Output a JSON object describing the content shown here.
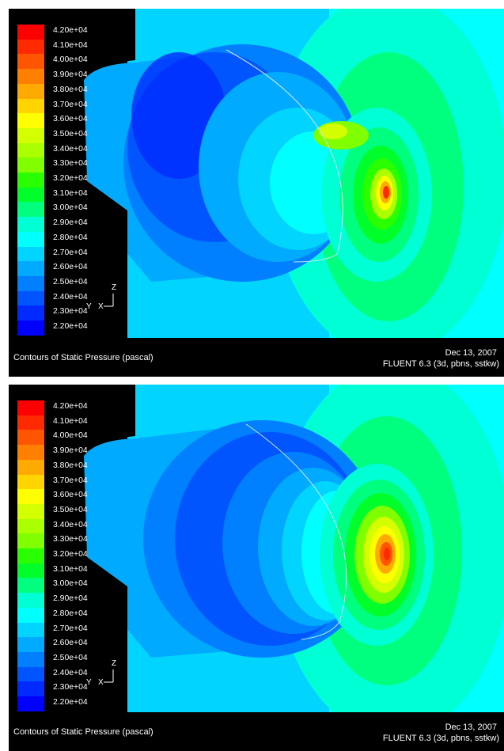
{
  "legend": {
    "levels": [
      "4.20e+04",
      "4.10e+04",
      "4.00e+04",
      "3.90e+04",
      "3.80e+04",
      "3.70e+04",
      "3.60e+04",
      "3.50e+04",
      "3.40e+04",
      "3.30e+04",
      "3.20e+04",
      "3.10e+04",
      "3.00e+04",
      "2.90e+04",
      "2.80e+04",
      "2.70e+04",
      "2.60e+04",
      "2.50e+04",
      "2.40e+04",
      "2.30e+04",
      "2.20e+04"
    ],
    "colors": [
      "#ff0000",
      "#ff2a00",
      "#ff5500",
      "#ff7f00",
      "#ffaa00",
      "#ffd400",
      "#ffff00",
      "#d4ff00",
      "#aaff00",
      "#7fff00",
      "#2aff00",
      "#00ff2a",
      "#00ff7f",
      "#00ffd4",
      "#00ffff",
      "#00d4ff",
      "#00aaff",
      "#007fff",
      "#0055ff",
      "#002aff",
      "#0000ff"
    ]
  },
  "axes": {
    "z": "Z",
    "y": "Y",
    "x": "X"
  },
  "panels": [
    {
      "caption_title": "Contours of Static Pressure (pascal)",
      "caption_date": "Dec 13, 2007",
      "caption_version": "FLUENT 6.3 (3d, pbns, sstkw)"
    },
    {
      "caption_title": "Contours of Static Pressure (pascal)",
      "caption_date": "Dec 13, 2007",
      "caption_version": "FLUENT 6.3 (3d, pbns, sstkw)"
    }
  ]
}
